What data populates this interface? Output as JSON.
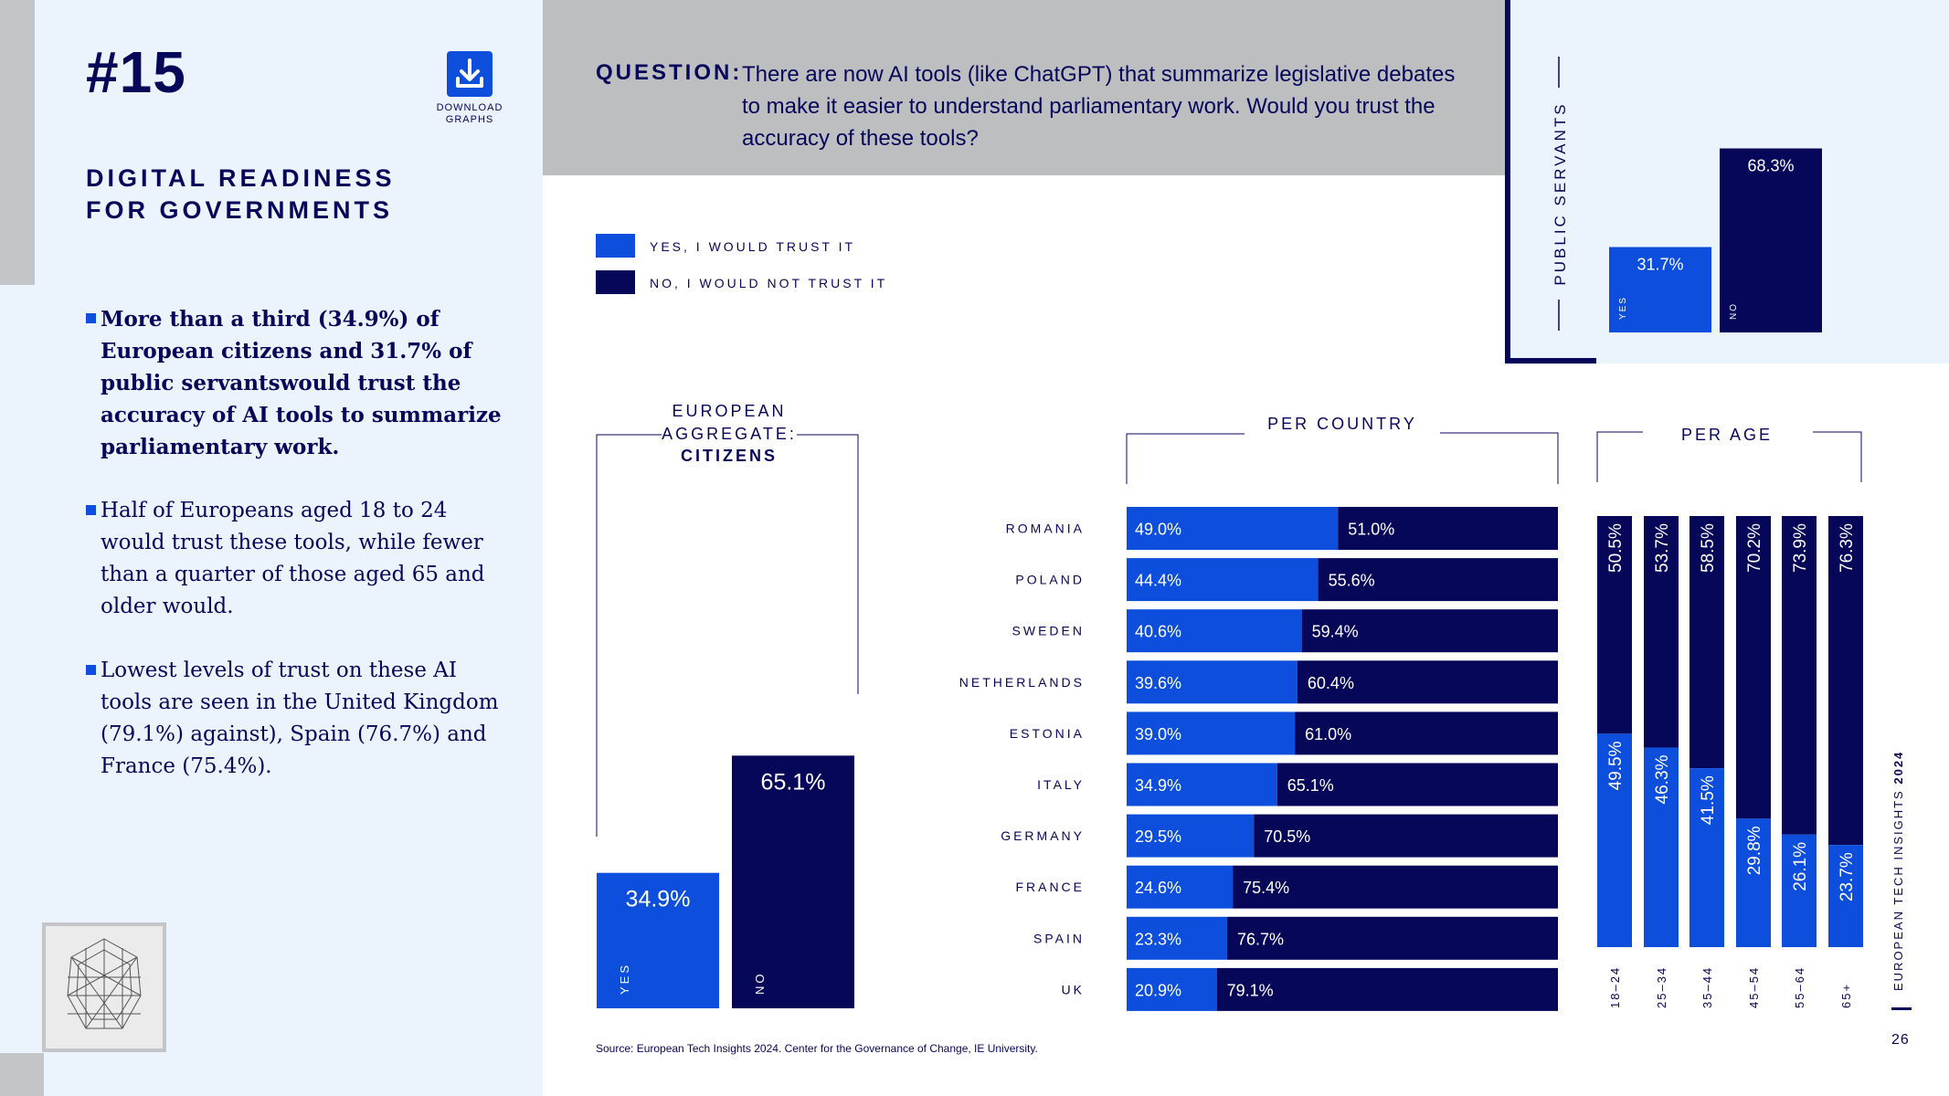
{
  "header": {
    "number_tag": "#15",
    "download_label_1": "DOWNLOAD",
    "download_label_2": "GRAPHS",
    "title_line1": "DIGITAL READINESS",
    "title_line2": "FOR GOVERNMENTS"
  },
  "bullets": [
    "More than a third (34.9%) of European citizens and 31.7% of public servantswould trust the accuracy of AI tools to summarize parliamentary work.",
    "Half of Europeans aged 18 to 24 would trust these tools, while fewer than a quarter of those aged 65 and older would.",
    "Lowest levels of trust on these AI tools are seen in the United Kingdom (79.1%) against), Spain (76.7%) and France (75.4%)."
  ],
  "question": {
    "label": "QUESTION:",
    "text": "There are now AI tools (like ChatGPT) that summarize legislative debates to make it easier to understand parliamentary work. Would you trust the accuracy of these tools?"
  },
  "legend": {
    "yes": "YES, I WOULD TRUST IT",
    "no": "NO, I WOULD NOT TRUST IT"
  },
  "colors": {
    "yes": "#0d4fdc",
    "no": "#07075a",
    "panel_bg": "#ebf3fc",
    "header_bg": "#bdbec0"
  },
  "chart_data": [
    {
      "type": "bar",
      "title": "PUBLIC SERVANTS",
      "categories": [
        "YES",
        "NO"
      ],
      "values": [
        31.7,
        68.3
      ],
      "labels": [
        "31.7%",
        "68.3%"
      ],
      "ylim": [
        0,
        100
      ]
    },
    {
      "type": "bar",
      "title_line1": "EUROPEAN",
      "title_line2": "AGGREGATE:",
      "title_line3": "CITIZENS",
      "categories": [
        "YES",
        "NO"
      ],
      "values": [
        34.9,
        65.1
      ],
      "labels": [
        "34.9%",
        "65.1%"
      ],
      "ylim": [
        0,
        100
      ]
    },
    {
      "type": "bar",
      "orientation": "horizontal-stacked",
      "title": "PER COUNTRY",
      "categories": [
        "ROMANIA",
        "POLAND",
        "SWEDEN",
        "NETHERLANDS",
        "ESTONIA",
        "ITALY",
        "GERMANY",
        "FRANCE",
        "SPAIN",
        "UK"
      ],
      "series": [
        {
          "name": "YES, I WOULD TRUST IT",
          "values": [
            49.0,
            44.4,
            40.6,
            39.6,
            39.0,
            34.9,
            29.5,
            24.6,
            23.3,
            20.9
          ],
          "labels": [
            "49.0%",
            "44.4%",
            "40.6%",
            "39.6%",
            "39.0%",
            "34.9%",
            "29.5%",
            "24.6%",
            "23.3%",
            "20.9%"
          ]
        },
        {
          "name": "NO, I WOULD NOT TRUST IT",
          "values": [
            51.0,
            55.6,
            59.4,
            60.4,
            61.0,
            65.1,
            70.5,
            75.4,
            76.7,
            79.1
          ],
          "labels": [
            "51.0%",
            "55.6%",
            "59.4%",
            "60.4%",
            "61.0%",
            "65.1%",
            "70.5%",
            "75.4%",
            "76.7%",
            "79.1%"
          ]
        }
      ]
    },
    {
      "type": "bar",
      "orientation": "vertical-stacked",
      "title": "PER AGE",
      "categories": [
        "18–24",
        "25–34",
        "35–44",
        "45–54",
        "55–64",
        "65+"
      ],
      "series": [
        {
          "name": "YES, I WOULD TRUST IT",
          "values": [
            49.5,
            46.3,
            41.5,
            29.8,
            26.1,
            23.7
          ],
          "labels": [
            "49.5%",
            "46.3%",
            "41.5%",
            "29.8%",
            "26.1%",
            "23.7%"
          ]
        },
        {
          "name": "NO, I WOULD NOT TRUST IT",
          "values": [
            50.5,
            53.7,
            58.5,
            70.2,
            73.9,
            76.3
          ],
          "labels": [
            "50.5%",
            "53.7%",
            "58.5%",
            "70.2%",
            "73.9%",
            "76.3%"
          ]
        }
      ]
    }
  ],
  "footer": {
    "source": "Source: European Tech Insights 2024. Center for the Governance of Change, IE University.",
    "brand": "EUROPEAN TECH INSIGHTS",
    "brand_year": "2024",
    "page_number": "26"
  }
}
